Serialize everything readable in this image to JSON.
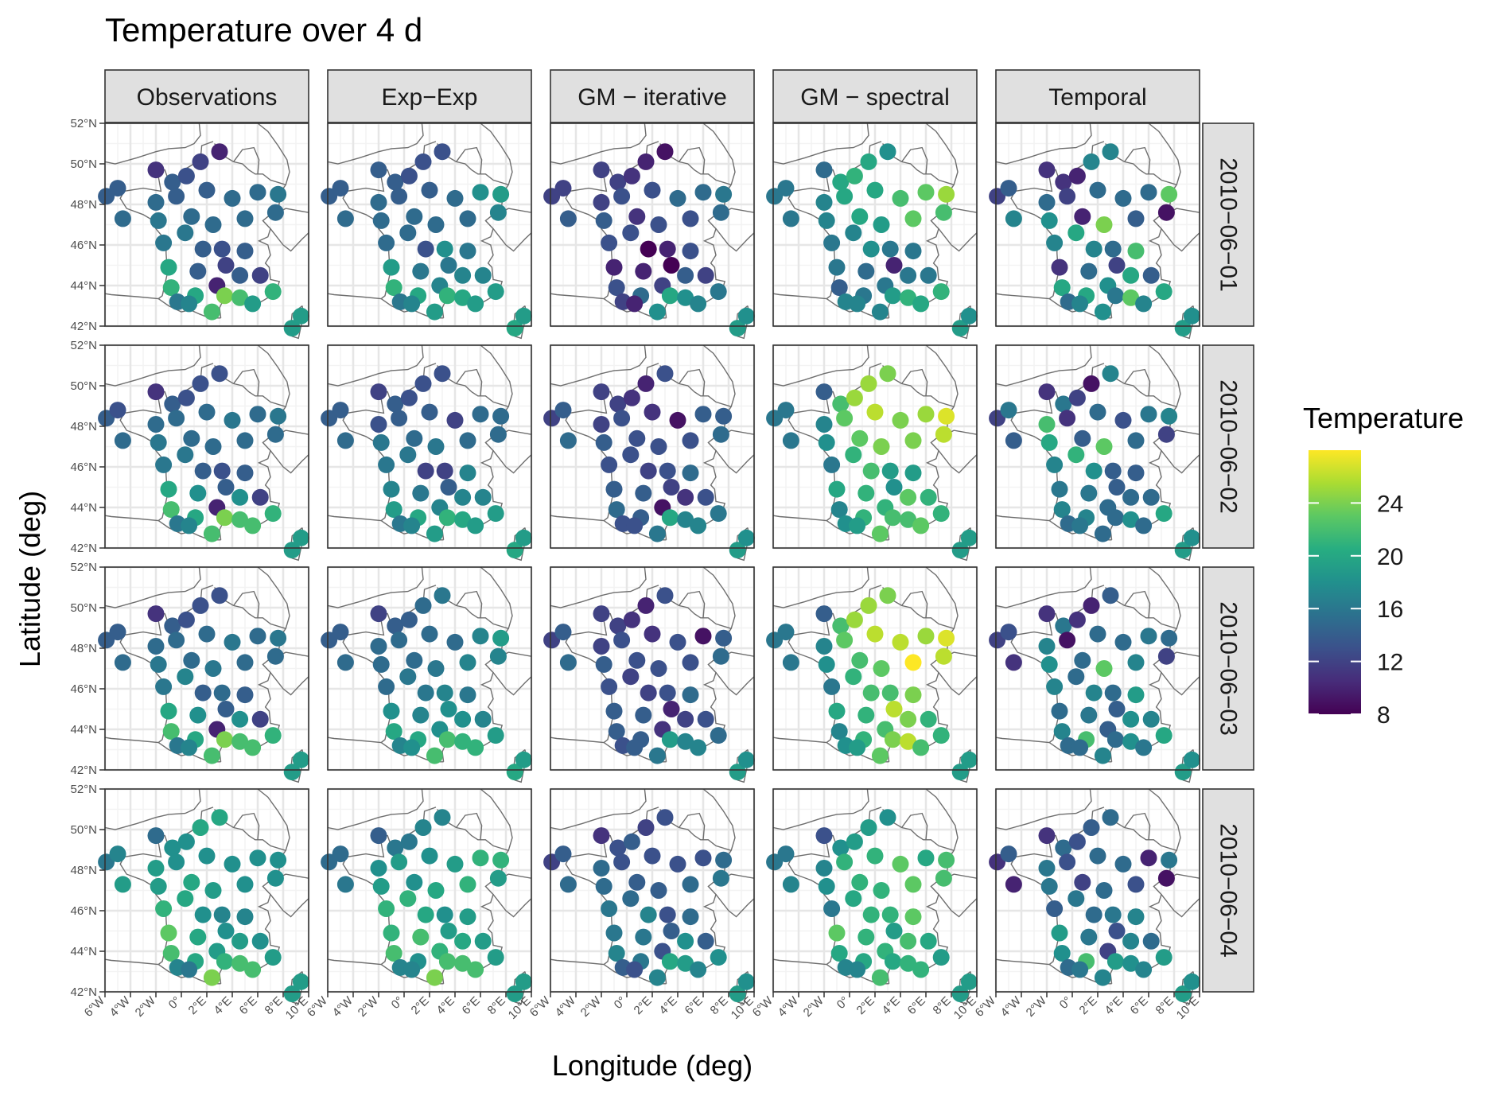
{
  "chart_data": {
    "type": "scatter",
    "subtype": "faceted map",
    "title": "Temperature over 4 d",
    "xlabel": "Longitude (deg)",
    "ylabel": "Latitude (deg)",
    "xlim": [
      -6,
      10
    ],
    "ylim": [
      42,
      52
    ],
    "x_ticks": [
      "6°W",
      "4°W",
      "2°W",
      "0°",
      "2°E",
      "4°E",
      "6°E",
      "8°E",
      "10°E"
    ],
    "y_ticks": [
      "42°N",
      "44°N",
      "46°N",
      "48°N",
      "50°N",
      "52°N"
    ],
    "grid": true,
    "legend": {
      "title": "Temperature",
      "position": "right",
      "colorscale": "viridis",
      "range": [
        8,
        28
      ],
      "ticks": [
        "8",
        "12",
        "16",
        "20",
        "24"
      ]
    },
    "columns": [
      "Observations",
      "Exp−Exp",
      "GM − iterative",
      "GM − spectral",
      "Temporal"
    ],
    "rows": [
      "2010−06−01",
      "2010−06−02",
      "2010−06−03",
      "2010−06−04"
    ],
    "stations": [
      [
        -5.9,
        48.4
      ],
      [
        -5.0,
        48.8
      ],
      [
        -2.0,
        49.7
      ],
      [
        -4.6,
        47.3
      ],
      [
        -2.0,
        48.1
      ],
      [
        -0.7,
        49.1
      ],
      [
        0.4,
        49.4
      ],
      [
        1.5,
        50.1
      ],
      [
        3.0,
        50.6
      ],
      [
        -0.4,
        48.4
      ],
      [
        2.0,
        48.7
      ],
      [
        4.0,
        48.3
      ],
      [
        6.0,
        48.6
      ],
      [
        7.6,
        48.5
      ],
      [
        -1.8,
        47.2
      ],
      [
        0.8,
        47.4
      ],
      [
        2.5,
        47.0
      ],
      [
        5.0,
        47.3
      ],
      [
        7.4,
        47.6
      ],
      [
        -1.4,
        46.1
      ],
      [
        0.3,
        46.6
      ],
      [
        1.7,
        45.8
      ],
      [
        3.2,
        45.8
      ],
      [
        5.0,
        45.7
      ],
      [
        -1.0,
        44.9
      ],
      [
        1.3,
        44.7
      ],
      [
        3.5,
        45.0
      ],
      [
        4.6,
        44.5
      ],
      [
        6.2,
        44.5
      ],
      [
        -0.8,
        43.9
      ],
      [
        1.1,
        43.5
      ],
      [
        2.8,
        44.0
      ],
      [
        -0.3,
        43.2
      ],
      [
        0.6,
        43.1
      ],
      [
        2.4,
        42.7
      ],
      [
        3.4,
        43.5
      ],
      [
        4.6,
        43.4
      ],
      [
        5.6,
        43.1
      ],
      [
        7.2,
        43.7
      ],
      [
        8.7,
        41.9
      ],
      [
        9.4,
        42.5
      ]
    ],
    "panels": [
      [
        [
          14,
          14,
          11,
          15,
          15,
          14,
          13,
          12,
          10,
          14,
          14,
          15,
          15,
          16,
          16,
          15,
          15,
          15,
          15,
          16,
          16,
          14,
          13,
          14,
          20,
          14,
          12,
          14,
          12,
          21,
          20,
          10,
          16,
          17,
          22,
          24,
          22,
          19,
          21,
          19,
          19
        ],
        [
          14,
          14,
          14,
          15,
          15,
          14,
          13,
          13,
          13,
          14,
          14,
          15,
          18,
          19,
          15,
          15,
          15,
          15,
          17,
          15,
          15,
          13,
          18,
          16,
          19,
          16,
          16,
          17,
          17,
          21,
          20,
          17,
          16,
          17,
          19,
          21,
          20,
          19,
          19,
          20,
          19
        ],
        [
          12,
          12,
          12,
          14,
          12,
          12,
          11,
          10,
          9,
          13,
          13,
          15,
          15,
          16,
          14,
          11,
          13,
          13,
          15,
          13,
          13,
          8,
          10,
          13,
          10,
          10,
          8,
          14,
          12,
          13,
          15,
          12,
          12,
          10,
          18,
          20,
          18,
          17,
          16,
          19,
          18
        ],
        [
          16,
          16,
          15,
          16,
          17,
          20,
          21,
          20,
          18,
          20,
          20,
          22,
          23,
          25,
          17,
          20,
          19,
          23,
          22,
          16,
          17,
          18,
          16,
          16,
          16,
          15,
          10,
          16,
          16,
          14,
          16,
          16,
          17,
          17,
          17,
          19,
          21,
          20,
          21,
          19,
          18
        ],
        [
          12,
          14,
          11,
          17,
          15,
          11,
          10,
          17,
          17,
          12,
          15,
          15,
          15,
          23,
          18,
          10,
          24,
          14,
          9,
          17,
          20,
          17,
          15,
          22,
          11,
          15,
          12,
          20,
          14,
          20,
          20,
          18,
          15,
          17,
          18,
          16,
          23,
          17,
          20,
          19,
          18
        ]
      ],
      [
        [
          14,
          13,
          11,
          15,
          15,
          14,
          13,
          13,
          13,
          15,
          15,
          16,
          15,
          16,
          16,
          15,
          15,
          15,
          15,
          16,
          16,
          14,
          13,
          14,
          20,
          18,
          14,
          18,
          12,
          22,
          20,
          10,
          16,
          17,
          22,
          24,
          22,
          22,
          21,
          19,
          19
        ],
        [
          14,
          14,
          12,
          15,
          13,
          14,
          13,
          13,
          13,
          14,
          14,
          12,
          15,
          15,
          16,
          15,
          16,
          15,
          15,
          16,
          16,
          12,
          12,
          17,
          17,
          16,
          14,
          17,
          17,
          19,
          20,
          17,
          16,
          17,
          19,
          21,
          20,
          19,
          19,
          20,
          19
        ],
        [
          12,
          14,
          12,
          15,
          12,
          12,
          11,
          10,
          13,
          13,
          11,
          9,
          14,
          14,
          14,
          13,
          13,
          13,
          15,
          13,
          13,
          12,
          13,
          15,
          14,
          14,
          12,
          11,
          13,
          15,
          14,
          9,
          13,
          13,
          16,
          20,
          17,
          17,
          16,
          19,
          18
        ],
        [
          16,
          16,
          14,
          16,
          17,
          22,
          25,
          25,
          24,
          23,
          26,
          24,
          25,
          27,
          18,
          23,
          24,
          24,
          26,
          16,
          21,
          22,
          19,
          19,
          20,
          21,
          18,
          23,
          21,
          17,
          21,
          21,
          18,
          19,
          23,
          22,
          22,
          23,
          21,
          19,
          19
        ],
        [
          12,
          16,
          11,
          14,
          22,
          16,
          12,
          9,
          17,
          11,
          15,
          13,
          16,
          17,
          20,
          14,
          23,
          15,
          12,
          17,
          21,
          18,
          14,
          14,
          16,
          16,
          14,
          15,
          15,
          17,
          17,
          15,
          15,
          16,
          15,
          15,
          18,
          15,
          20,
          19,
          18
        ]
      ],
      [
        [
          14,
          14,
          11,
          15,
          15,
          14,
          13,
          13,
          13,
          15,
          15,
          16,
          15,
          16,
          16,
          15,
          16,
          15,
          15,
          16,
          17,
          14,
          15,
          14,
          20,
          18,
          14,
          18,
          12,
          22,
          20,
          10,
          16,
          17,
          22,
          24,
          22,
          22,
          21,
          19,
          19
        ],
        [
          14,
          14,
          12,
          15,
          15,
          14,
          14,
          15,
          16,
          15,
          15,
          15,
          17,
          19,
          15,
          15,
          16,
          17,
          17,
          15,
          16,
          16,
          17,
          16,
          18,
          17,
          18,
          18,
          17,
          20,
          20,
          18,
          17,
          18,
          22,
          22,
          21,
          21,
          19,
          20,
          19
        ],
        [
          12,
          14,
          12,
          15,
          12,
          12,
          11,
          10,
          13,
          13,
          11,
          13,
          9,
          14,
          14,
          13,
          13,
          13,
          15,
          13,
          12,
          12,
          13,
          15,
          14,
          14,
          10,
          12,
          13,
          14,
          14,
          11,
          13,
          14,
          16,
          19,
          17,
          17,
          15,
          19,
          18
        ],
        [
          16,
          16,
          14,
          16,
          17,
          22,
          25,
          25,
          24,
          23,
          26,
          26,
          25,
          27,
          18,
          22,
          23,
          28,
          26,
          16,
          21,
          22,
          22,
          24,
          20,
          21,
          26,
          24,
          21,
          17,
          21,
          22,
          18,
          19,
          23,
          24,
          26,
          22,
          21,
          19,
          19
        ],
        [
          12,
          13,
          11,
          11,
          17,
          16,
          11,
          10,
          14,
          9,
          15,
          15,
          16,
          15,
          18,
          15,
          23,
          17,
          12,
          17,
          15,
          17,
          15,
          19,
          15,
          16,
          14,
          18,
          17,
          17,
          22,
          14,
          15,
          15,
          17,
          15,
          18,
          16,
          20,
          19,
          18
        ]
      ],
      [
        [
          16,
          17,
          15,
          19,
          19,
          18,
          18,
          20,
          20,
          18,
          18,
          18,
          18,
          18,
          19,
          20,
          19,
          18,
          18,
          21,
          20,
          18,
          17,
          17,
          23,
          20,
          18,
          19,
          18,
          22,
          20,
          19,
          17,
          16,
          24,
          21,
          22,
          22,
          19,
          19,
          19
        ],
        [
          15,
          15,
          14,
          16,
          18,
          16,
          16,
          17,
          17,
          19,
          18,
          19,
          21,
          21,
          19,
          18,
          20,
          21,
          19,
          21,
          21,
          20,
          18,
          19,
          21,
          22,
          19,
          20,
          19,
          22,
          18,
          21,
          17,
          17,
          24,
          22,
          22,
          22,
          19,
          19,
          19
        ],
        [
          12,
          14,
          11,
          15,
          15,
          13,
          14,
          12,
          13,
          13,
          13,
          13,
          13,
          15,
          15,
          14,
          14,
          15,
          16,
          16,
          15,
          17,
          13,
          15,
          16,
          16,
          14,
          18,
          14,
          17,
          16,
          13,
          14,
          13,
          17,
          20,
          19,
          17,
          18,
          19,
          18
        ],
        [
          16,
          16,
          13,
          17,
          17,
          18,
          19,
          19,
          18,
          21,
          21,
          23,
          20,
          22,
          18,
          21,
          21,
          23,
          22,
          16,
          20,
          21,
          21,
          23,
          23,
          21,
          19,
          22,
          20,
          20,
          20,
          21,
          17,
          17,
          22,
          20,
          21,
          21,
          19,
          19,
          19
        ],
        [
          11,
          14,
          11,
          10,
          16,
          15,
          13,
          14,
          15,
          13,
          15,
          15,
          10,
          16,
          16,
          12,
          15,
          13,
          9,
          14,
          16,
          15,
          16,
          17,
          19,
          16,
          13,
          17,
          15,
          18,
          22,
          12,
          15,
          16,
          17,
          19,
          18,
          17,
          19,
          19,
          18
        ]
      ]
    ]
  }
}
